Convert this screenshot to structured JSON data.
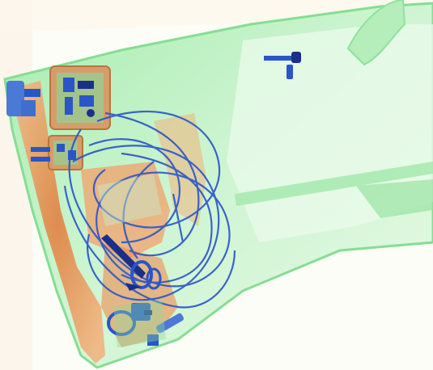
{
  "image": {
    "kind": "xray-baggage-scan",
    "palette": {
      "background": "#fbfdf6",
      "bag_fill": "#c9f2cf",
      "bag_edge": "#8ee39a",
      "organic_orange": "#e8884a",
      "metal_blue": "#2a55c8",
      "dense_dark_blue": "#1a2f8a",
      "pcb_tan": "#d79c6a"
    },
    "objects": [
      {
        "name": "bag-body"
      },
      {
        "name": "bag-handle"
      },
      {
        "name": "circuit-board-upper"
      },
      {
        "name": "circuit-board-lower"
      },
      {
        "name": "cable-bundle"
      },
      {
        "name": "scissors"
      },
      {
        "name": "clamp-tool"
      },
      {
        "name": "small-pen"
      },
      {
        "name": "buckle-left"
      },
      {
        "name": "connector-plug"
      }
    ]
  }
}
